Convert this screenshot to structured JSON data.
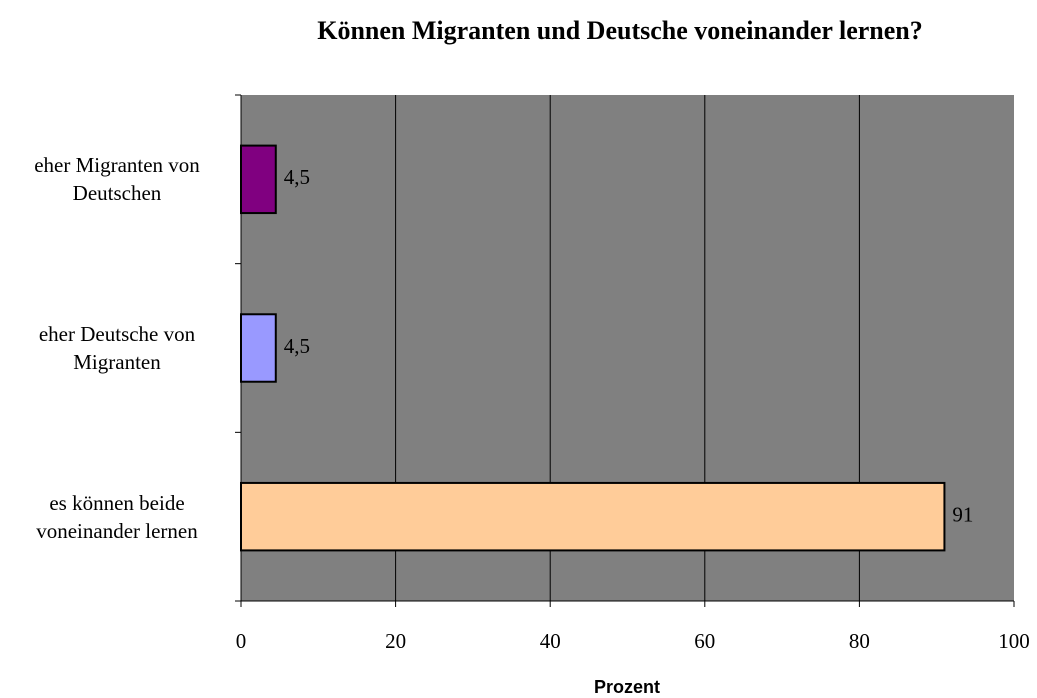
{
  "chart_data": {
    "type": "bar",
    "orientation": "horizontal",
    "title": "Können Migranten und Deutsche voneinander lernen?",
    "xlabel": "Prozent",
    "categories": [
      "eher Migranten von Deutschen",
      "eher Deutsche von Migranten",
      "es können beide voneinander lernen"
    ],
    "values": [
      4.5,
      4.5,
      91
    ],
    "value_labels": [
      "4,5",
      "4,5",
      "91"
    ],
    "colors": [
      "#800080",
      "#9999ff",
      "#ffcc99"
    ],
    "xlim": [
      0,
      100
    ],
    "xticks": [
      0,
      20,
      40,
      60,
      80,
      100
    ],
    "grid": true
  }
}
